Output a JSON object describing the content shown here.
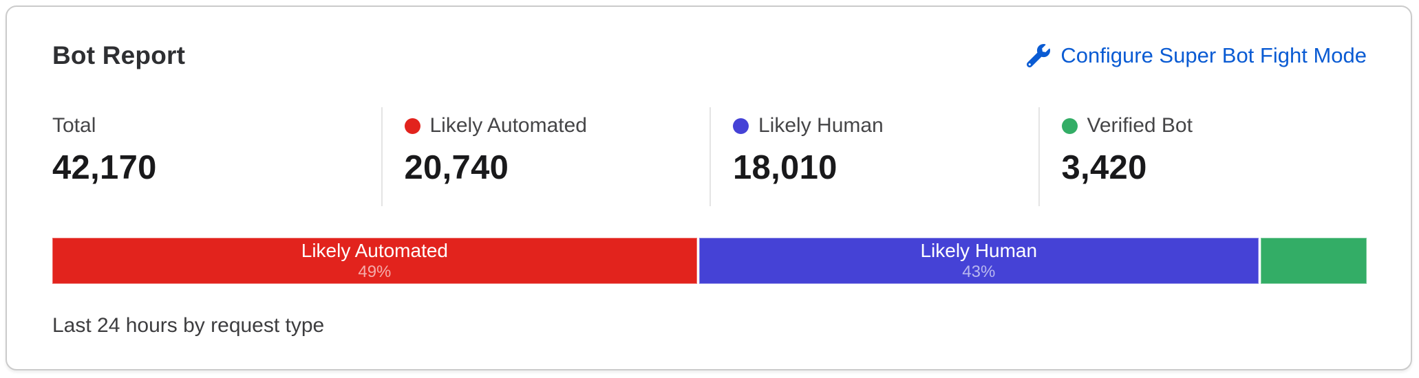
{
  "header": {
    "title": "Bot Report",
    "action_label": "Configure Super Bot Fight Mode",
    "action_icon": "wrench-icon",
    "link_color": "#0a5bd3"
  },
  "stats": [
    {
      "label": "Total",
      "value": "42,170",
      "dot_color": null
    },
    {
      "label": "Likely Automated",
      "value": "20,740",
      "dot_color": "#e2231d"
    },
    {
      "label": "Likely Human",
      "value": "18,010",
      "dot_color": "#4542d6"
    },
    {
      "label": "Verified Bot",
      "value": "3,420",
      "dot_color": "#33ad66"
    }
  ],
  "footer": {
    "caption": "Last 24 hours by request type"
  },
  "chart_data": {
    "type": "bar",
    "subtype": "stacked-horizontal",
    "title": "Bot Report",
    "caption": "Last 24 hours by request type",
    "total": 42170,
    "unit": "requests",
    "legend_position": "none",
    "segments": [
      {
        "name": "Likely Automated",
        "value": 20740,
        "pct": 49.2,
        "pct_label": "49%",
        "color": "#e2231d",
        "label_visible": true
      },
      {
        "name": "Likely Human",
        "value": 18010,
        "pct": 42.7,
        "pct_label": "43%",
        "color": "#4542d6",
        "label_visible": true
      },
      {
        "name": "Verified Bot",
        "value": 3420,
        "pct": 8.1,
        "pct_label": "8%",
        "color": "#33ad66",
        "label_visible": false
      }
    ]
  }
}
